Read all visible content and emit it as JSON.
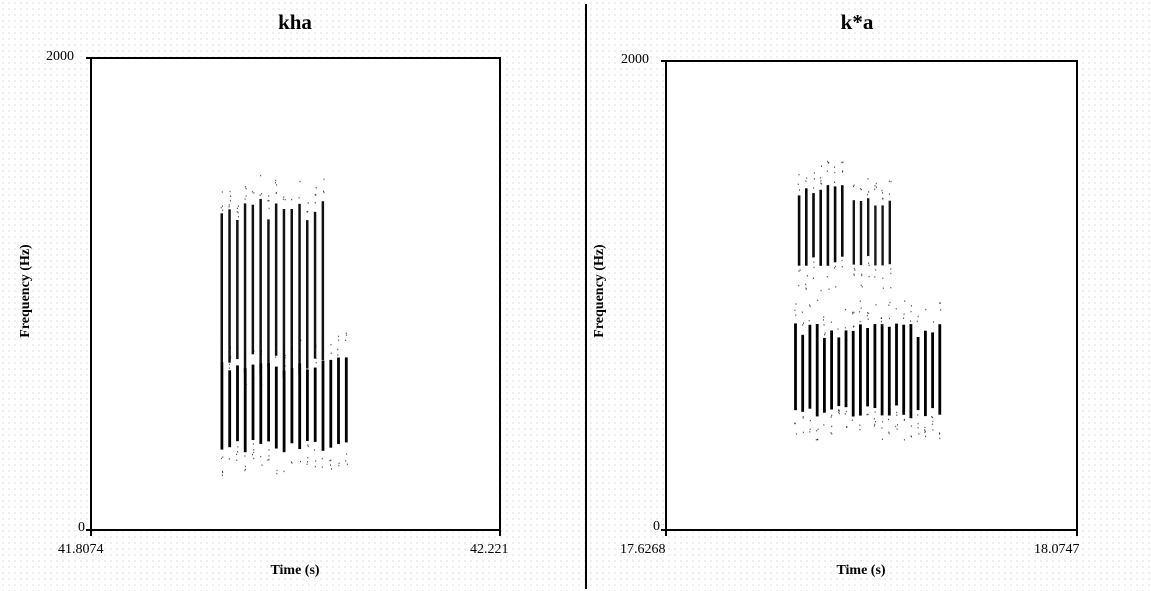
{
  "chart_data": [
    {
      "type": "heatmap",
      "title": "kha",
      "xlabel": "Time (s)",
      "ylabel": "Frequency (Hz)",
      "xlim": [
        41.8074,
        42.221
      ],
      "ylim": [
        0,
        2000
      ],
      "x_tick_labels": [
        "41.8074",
        "42.221"
      ],
      "y_tick_labels": [
        "0",
        "2000"
      ],
      "grid": false,
      "voicing_start": 41.938,
      "voicing_end": 42.07,
      "energy_bands": [
        {
          "t_start": 41.938,
          "t_end": 42.07,
          "f_low": 350,
          "f_high": 700,
          "intensity": 1.0
        },
        {
          "t_start": 41.938,
          "t_end": 42.045,
          "f_low": 700,
          "f_high": 1350,
          "intensity": 0.85
        }
      ],
      "color": "#000000"
    },
    {
      "type": "heatmap",
      "title": "k*a",
      "xlabel": "Time (s)",
      "ylabel": "Frequency (Hz)",
      "xlim": [
        17.6268,
        18.0747
      ],
      "ylim": [
        0,
        2000
      ],
      "x_tick_labels": [
        "17.6268",
        "18.0747"
      ],
      "y_tick_labels": [
        "0",
        "2000"
      ],
      "grid": false,
      "voicing_start": 17.77,
      "voicing_end": 17.92,
      "energy_bands": [
        {
          "t_start": 17.766,
          "t_end": 17.925,
          "f_low": 500,
          "f_high": 850,
          "intensity": 1.0
        },
        {
          "t_start": 17.77,
          "t_end": 17.825,
          "f_low": 1150,
          "f_high": 1450,
          "intensity": 0.9
        },
        {
          "t_start": 17.83,
          "t_end": 17.87,
          "f_low": 1150,
          "f_high": 1400,
          "intensity": 0.8
        }
      ],
      "color": "#000000"
    }
  ]
}
